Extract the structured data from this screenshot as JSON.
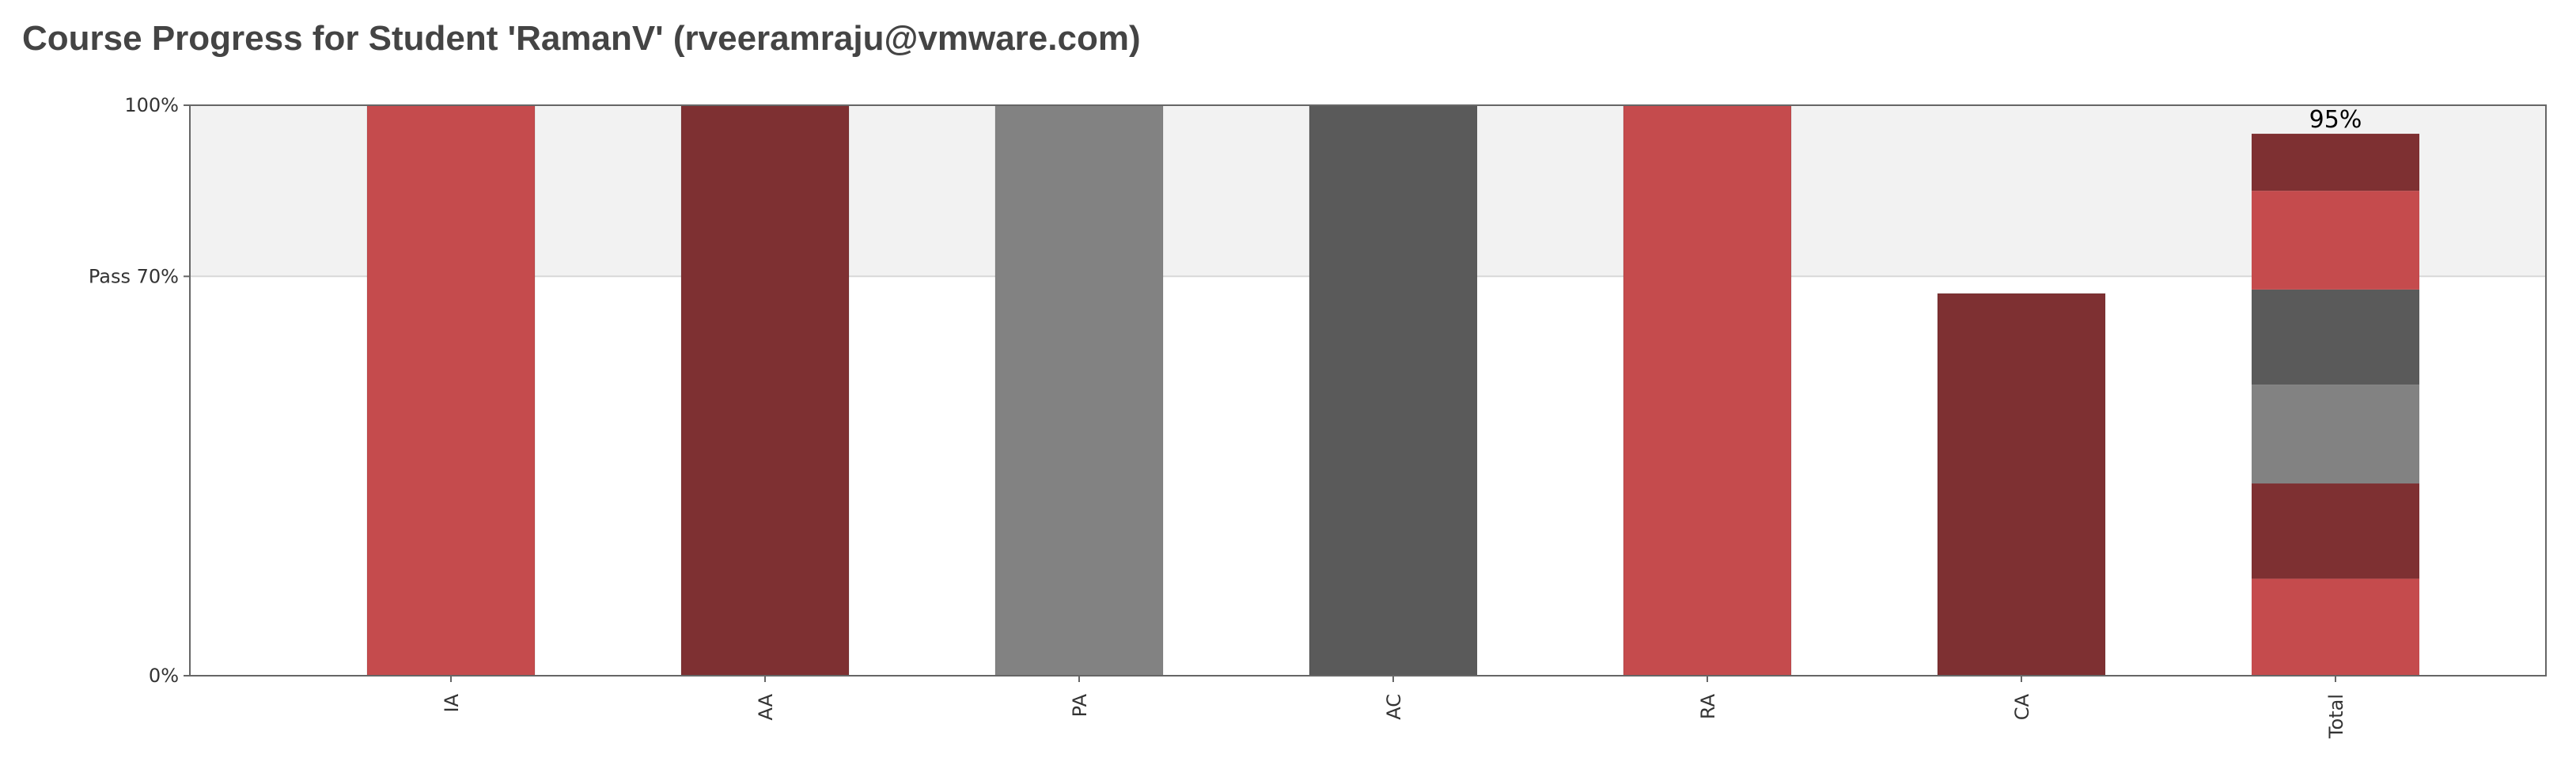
{
  "title": "Course Progress for Student 'RamanV' (rveeramraju@vmware.com)",
  "colors": {
    "red": "#c54b4d",
    "dark_red": "#7e3032",
    "gray": "#828282",
    "dark_gray": "#5a5a5a",
    "pass_band": "#f2f2f2",
    "axis": "#666666"
  },
  "chart_data": {
    "type": "bar",
    "title": "Course Progress for Student 'RamanV' (rveeramraju@vmware.com)",
    "xlabel": "",
    "ylabel": "",
    "ylim": [
      0,
      100
    ],
    "y_ticks": [
      {
        "value": 0,
        "label": "0%"
      },
      {
        "value": 70,
        "label": "Pass 70%"
      },
      {
        "value": 100,
        "label": "100%"
      }
    ],
    "pass_threshold": 70,
    "categories": [
      "IA",
      "AA",
      "PA",
      "AC",
      "RA",
      "CA",
      "Total"
    ],
    "bars": [
      {
        "category": "IA",
        "value": 100,
        "color": "#c54b4d"
      },
      {
        "category": "AA",
        "value": 100,
        "color": "#7e3032"
      },
      {
        "category": "PA",
        "value": 100,
        "color": "#828282"
      },
      {
        "category": "AC",
        "value": 100,
        "color": "#5a5a5a"
      },
      {
        "category": "RA",
        "value": 100,
        "color": "#c54b4d"
      },
      {
        "category": "CA",
        "value": 67,
        "color": "#7e3032"
      }
    ],
    "total": {
      "category": "Total",
      "value": 95,
      "label": "95%",
      "segments": [
        {
          "component": "IA",
          "value": 17,
          "color": "#c54b4d"
        },
        {
          "component": "AA",
          "value": 16.7,
          "color": "#7e3032"
        },
        {
          "component": "PA",
          "value": 17.3,
          "color": "#828282"
        },
        {
          "component": "AC",
          "value": 16.7,
          "color": "#5a5a5a"
        },
        {
          "component": "RA",
          "value": 17.3,
          "color": "#c54b4d"
        },
        {
          "component": "CA",
          "value": 10,
          "color": "#7e3032"
        }
      ]
    },
    "grid": false,
    "legend": "none"
  }
}
